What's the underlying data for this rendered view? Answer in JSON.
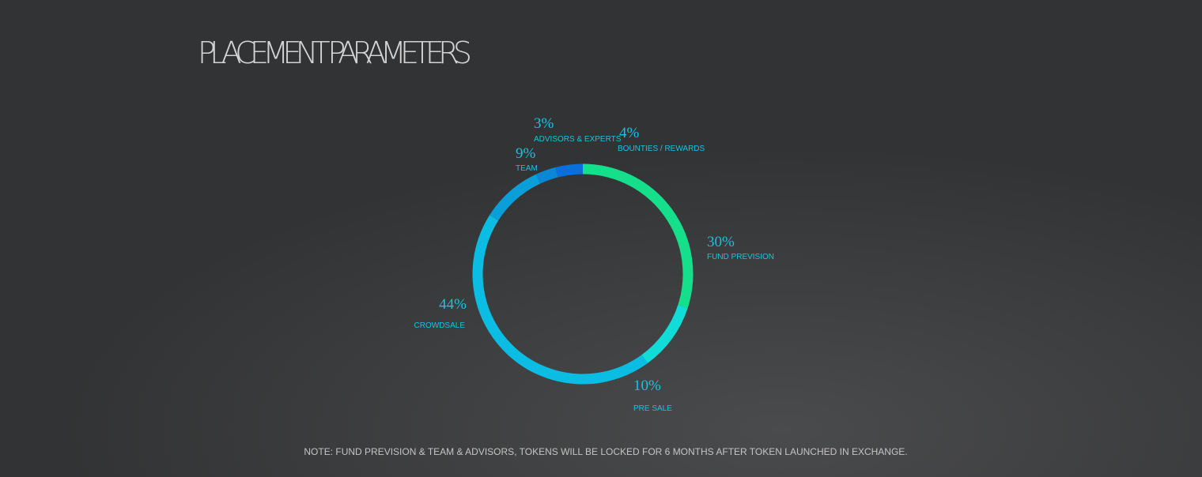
{
  "chart_data": {
    "type": "donut",
    "title": "PLACEMENT PARAMETERS",
    "categories": [
      "FUND PREVISION",
      "PRE SALE",
      "CROWDSALE",
      "TEAM",
      "ADVISORS & EXPERTS",
      "BOUNTIES / REWARDS"
    ],
    "values": [
      30,
      10,
      44,
      9,
      3,
      4
    ],
    "value_labels": [
      "30%",
      "10%",
      "44%",
      "9%",
      "3%",
      "4%"
    ],
    "colors": [
      "#16df8c",
      "#12dcd8",
      "#0bbde2",
      "#0a9fd9",
      "#0a88d6",
      "#0a6fdc"
    ],
    "note": "NOTE:  FUND PREVISION & TEAM & ADVISORS, TOKENS WILL BE LOCKED FOR 6 MONTHS AFTER TOKEN LAUNCHED IN EXCHANGE."
  }
}
